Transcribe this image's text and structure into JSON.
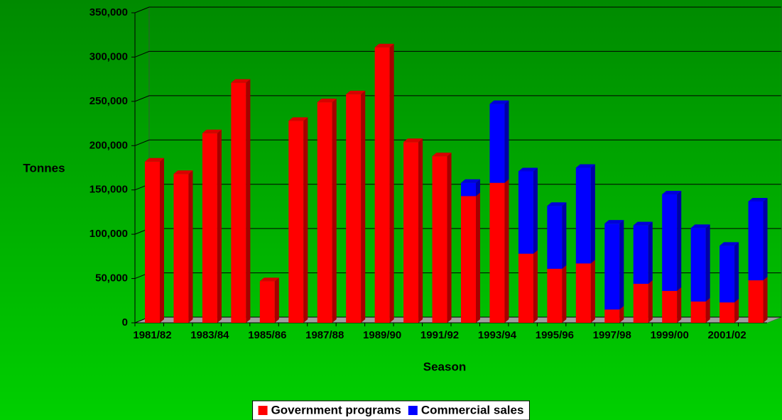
{
  "chart_data": {
    "type": "bar",
    "stacked": true,
    "x_label": "Season",
    "y_label": "Tonnes",
    "categories": [
      "1981/82",
      null,
      "1983/84",
      null,
      "1985/86",
      null,
      "1987/88",
      null,
      "1989/90",
      null,
      "1991/92",
      null,
      "1993/94",
      null,
      "1995/96",
      null,
      "1997/98",
      null,
      "1999/00",
      null,
      "2001/02",
      null
    ],
    "series": [
      {
        "name": "Government programs",
        "color": "#ff0000",
        "values": [
          182000,
          168000,
          214000,
          271000,
          47000,
          228000,
          249000,
          258000,
          311000,
          204000,
          188000,
          143000,
          158000,
          78000,
          61000,
          67000,
          15000,
          44000,
          36000,
          24000,
          23000,
          48000
        ]
      },
      {
        "name": "Commercial sales",
        "color": "#0000ff",
        "values": [
          0,
          0,
          0,
          0,
          0,
          0,
          0,
          0,
          0,
          0,
          0,
          15000,
          89000,
          93000,
          71000,
          108000,
          97000,
          66000,
          109000,
          83000,
          64000,
          89000
        ]
      }
    ],
    "ylim": [
      0,
      350000
    ],
    "yticks": [
      0,
      {
        "value": 50000,
        "label": "50,000"
      },
      {
        "value": 100000,
        "label": "100,000"
      },
      {
        "value": 150000,
        "label": "150,000"
      },
      {
        "value": 200000,
        "label": "200,000"
      },
      {
        "value": 250000,
        "label": "250,000"
      },
      {
        "value": 300000,
        "label": "300,000"
      },
      {
        "value": 350000,
        "label": "350,000"
      }
    ],
    "grid": true,
    "legend": "bottom"
  }
}
